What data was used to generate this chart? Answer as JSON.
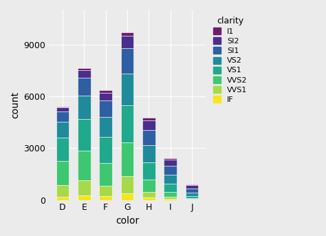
{
  "colors": [
    "D",
    "E",
    "F",
    "G",
    "H",
    "I",
    "J"
  ],
  "clarity_levels": [
    "IF",
    "VVS1",
    "VVS2",
    "VS1",
    "VS2",
    "SI1",
    "SI2",
    "I1"
  ],
  "clarity_colors_bottom_to_top": [
    "#F5E61A",
    "#A8D94A",
    "#3EC770",
    "#20A98C",
    "#1F8A9A",
    "#2E5FA3",
    "#4B2D8C",
    "#6B1F6B"
  ],
  "legend_labels": [
    "I1",
    "SI2",
    "SI1",
    "VS2",
    "VS1",
    "VVS2",
    "VVS1",
    "IF"
  ],
  "legend_colors": [
    "#6B1F6B",
    "#4B2D8C",
    "#2E5FA3",
    "#1F8A9A",
    "#20A98C",
    "#3EC770",
    "#A8D94A",
    "#F5E61A"
  ],
  "data": {
    "D": [
      163,
      705,
      1401,
      1360,
      920,
      597,
      223,
      42
    ],
    "E": [
      268,
      861,
      1709,
      1871,
      1332,
      1036,
      469,
      102
    ],
    "F": [
      220,
      616,
      1320,
      1482,
      1160,
      976,
      453,
      132
    ],
    "G": [
      397,
      999,
      1933,
      2148,
      1858,
      1452,
      730,
      214
    ],
    "H": [
      152,
      301,
      726,
      1002,
      1002,
      869,
      547,
      166
    ],
    "I": [
      77,
      110,
      284,
      474,
      522,
      519,
      340,
      92
    ],
    "J": [
      13,
      32,
      74,
      119,
      201,
      241,
      182,
      50
    ]
  },
  "xlabel": "color",
  "ylabel": "count",
  "legend_title": "clarity",
  "ylim": [
    0,
    11000
  ],
  "yticks": [
    0,
    3000,
    6000,
    9000
  ],
  "background_color": "#EBEBEB",
  "grid_color": "#FFFFFF",
  "bar_width": 0.6
}
